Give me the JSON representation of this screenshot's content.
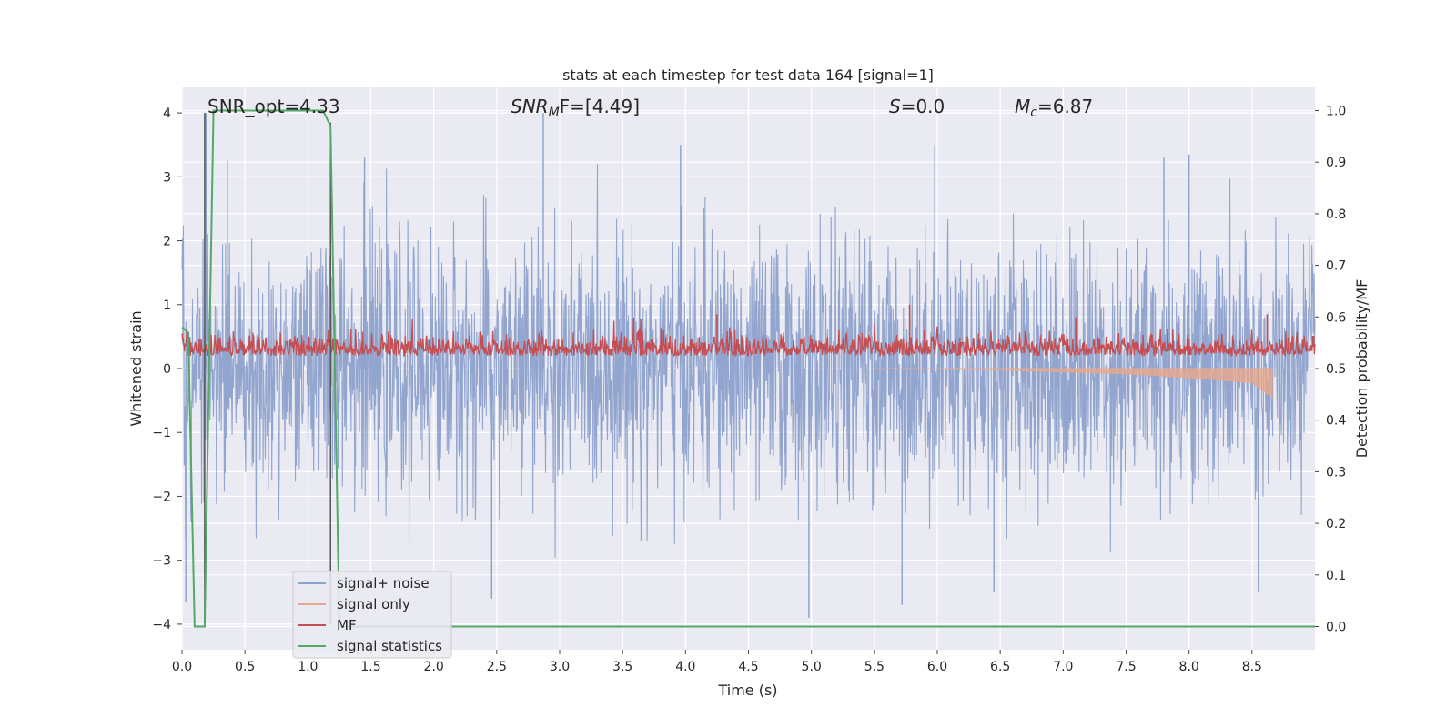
{
  "chart_data": {
    "type": "line",
    "title": "stats at each timestep for test data 164 [signal=1]",
    "xlabel": "Time (s)",
    "ylabel": "Whitened strain",
    "y2label": "Detection probability/MF",
    "xlim": [
      0,
      9
    ],
    "ylim": [
      -4.4,
      4.4
    ],
    "y2lim": [
      -0.045,
      1.045
    ],
    "xticks": [
      "0.0",
      "0.5",
      "1.0",
      "1.5",
      "2.0",
      "2.5",
      "3.0",
      "3.5",
      "4.0",
      "4.5",
      "5.0",
      "5.5",
      "6.0",
      "6.5",
      "7.0",
      "7.5",
      "8.0",
      "8.5"
    ],
    "yticks": [
      "−4",
      "−3",
      "−2",
      "−1",
      "0",
      "1",
      "2",
      "3",
      "4"
    ],
    "y2ticks": [
      "0.0",
      "0.1",
      "0.2",
      "0.3",
      "0.4",
      "0.5",
      "0.6",
      "0.7",
      "0.8",
      "0.9",
      "1.0"
    ],
    "grid": true,
    "legend_position": "lower-left",
    "annotations": {
      "snr_opt": "SNR_opt=4.33",
      "snr_mf_base": "SNR",
      "snr_mf_sub": "M",
      "snr_mf_rest": "F=[4.49]",
      "s_label": "S",
      "s_rest": "=0.0",
      "mc_base": "M",
      "mc_sub": "c",
      "mc_rest": "=6.87"
    },
    "series": [
      {
        "name": "signal+ noise",
        "color": "#8da1cc",
        "axis": "left",
        "noise_std": 0.98,
        "peaks": [
          [
            0.19,
            4.0
          ],
          [
            0.36,
            3.25
          ],
          [
            1.45,
            3.3
          ],
          [
            2.87,
            4.0
          ],
          [
            3.96,
            3.5
          ],
          [
            5.98,
            3.5
          ],
          [
            7.8,
            3.3
          ],
          [
            8.0,
            3.35
          ],
          [
            0.03,
            -3.65
          ],
          [
            2.46,
            -3.6
          ],
          [
            4.98,
            -3.9
          ],
          [
            5.72,
            -3.7
          ],
          [
            6.45,
            -3.5
          ],
          [
            8.55,
            -3.5
          ]
        ]
      },
      {
        "name": "signal only",
        "color": "#e8a88c",
        "axis": "left",
        "note_points": [
          [
            5.5,
            0.0
          ],
          [
            6.5,
            -0.02
          ],
          [
            7.5,
            -0.08
          ],
          [
            8.0,
            -0.14
          ],
          [
            8.5,
            -0.22
          ],
          [
            8.66,
            -0.45
          ]
        ]
      },
      {
        "name": "MF",
        "color": "#c44e52",
        "axis": "left",
        "baseline": 0.25,
        "peaks": [
          [
            5.78,
            1.0
          ],
          [
            4.25,
            0.85
          ],
          [
            7.1,
            0.8
          ],
          [
            8.62,
            0.85
          ]
        ]
      },
      {
        "name": "signal statistics",
        "color": "#55a868",
        "axis": "right",
        "x": [
          0.0,
          0.05,
          0.1,
          0.12,
          0.18,
          0.25,
          1.12,
          1.18,
          1.25,
          1.35,
          9.0
        ],
        "y": [
          0.58,
          0.57,
          0.0,
          0.0,
          0.0,
          1.0,
          1.0,
          0.97,
          0.0,
          0.0,
          0.0
        ]
      }
    ],
    "vlines": [
      {
        "x": 0.18,
        "y_from": -4.0,
        "y_to": 4.0,
        "color": "#555555"
      },
      {
        "x": 1.18,
        "y_from": -4.0,
        "y_to": 3.85,
        "color": "#555555"
      }
    ]
  }
}
